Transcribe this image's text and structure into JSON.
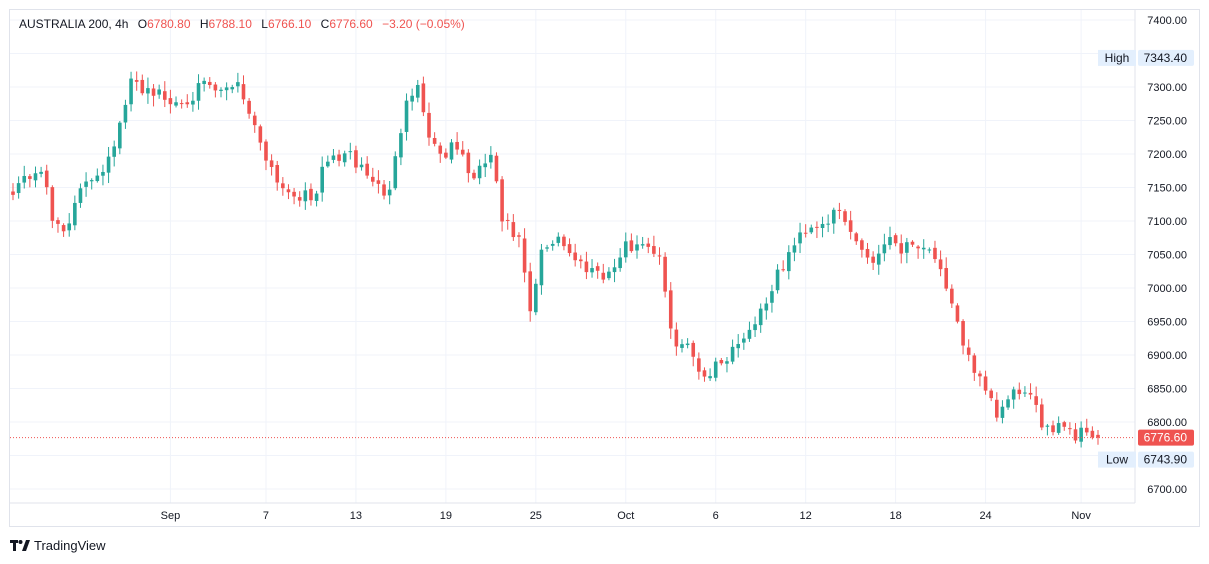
{
  "header": {
    "symbol": "AUSTRALIA 200",
    "interval": "4h",
    "o_label": "O",
    "o_value": "6780.80",
    "h_label": "H",
    "h_value": "6788.10",
    "l_label": "L",
    "l_value": "6766.10",
    "c_label": "C",
    "c_value": "6776.60",
    "change": "−3.20 (−0.05%)"
  },
  "footer": {
    "brand": "TradingView",
    "logo_icon": "tradingview-logo-icon"
  },
  "colors": {
    "up": "#26a69a",
    "down": "#ef5350",
    "grid": "#f0f3fa",
    "badge_gray": "#e3effd"
  },
  "chart_data": {
    "type": "candlestick",
    "ylim": [
      6680,
      7420
    ],
    "y_ticks": [
      7400,
      7350,
      7300,
      7250,
      7200,
      7150,
      7100,
      7050,
      7000,
      6950,
      6900,
      6850,
      6800,
      6750,
      6700
    ],
    "y_tick_labels": [
      "7400.00",
      "7350.00",
      "7300.00",
      "7250.00",
      "7200.00",
      "7150.00",
      "7100.00",
      "7050.00",
      "7000.00",
      "6950.00",
      "6900.00",
      "6850.00",
      "6800.00",
      "6750.00",
      "6700.00"
    ],
    "x_tick_labels": [
      "Sep",
      "7",
      "13",
      "19",
      "25",
      "Oct",
      "6",
      "12",
      "18",
      "24",
      "Nov"
    ],
    "x_tick_bar_index": [
      28,
      45,
      61,
      77,
      93,
      109,
      125,
      141,
      157,
      173,
      190
    ],
    "high_label": "High",
    "high_value": "7343.40",
    "low_label": "Low",
    "low_value": "6743.90",
    "last_value": "6776.60",
    "close_waypoints": [
      [
        0,
        7150
      ],
      [
        5,
        7180
      ],
      [
        7,
        7100
      ],
      [
        9,
        7090
      ],
      [
        11,
        7120
      ],
      [
        13,
        7160
      ],
      [
        16,
        7180
      ],
      [
        19,
        7240
      ],
      [
        21,
        7305
      ],
      [
        25,
        7295
      ],
      [
        28,
        7275
      ],
      [
        31,
        7285
      ],
      [
        34,
        7300
      ],
      [
        37,
        7290
      ],
      [
        40,
        7310
      ],
      [
        43,
        7240
      ],
      [
        46,
        7180
      ],
      [
        48,
        7150
      ],
      [
        51,
        7140
      ],
      [
        53,
        7130
      ],
      [
        56,
        7190
      ],
      [
        59,
        7200
      ],
      [
        62,
        7180
      ],
      [
        65,
        7150
      ],
      [
        67,
        7140
      ],
      [
        70,
        7290
      ],
      [
        72,
        7300
      ],
      [
        74,
        7230
      ],
      [
        76,
        7200
      ],
      [
        79,
        7210
      ],
      [
        82,
        7160
      ],
      [
        85,
        7200
      ],
      [
        87,
        7100
      ],
      [
        90,
        7070
      ],
      [
        92,
        6960
      ],
      [
        94,
        7050
      ],
      [
        97,
        7080
      ],
      [
        100,
        7040
      ],
      [
        103,
        7030
      ],
      [
        106,
        7020
      ],
      [
        109,
        7060
      ],
      [
        112,
        7070
      ],
      [
        115,
        7050
      ],
      [
        117,
        6930
      ],
      [
        120,
        6910
      ],
      [
        123,
        6870
      ],
      [
        126,
        6890
      ],
      [
        129,
        6920
      ],
      [
        132,
        6950
      ],
      [
        135,
        7000
      ],
      [
        138,
        7050
      ],
      [
        141,
        7090
      ],
      [
        144,
        7100
      ],
      [
        147,
        7110
      ],
      [
        150,
        7070
      ],
      [
        153,
        7040
      ],
      [
        156,
        7080
      ],
      [
        158,
        7060
      ],
      [
        161,
        7070
      ],
      [
        164,
        7050
      ],
      [
        166,
        6990
      ],
      [
        169,
        6920
      ],
      [
        171,
        6880
      ],
      [
        173,
        6840
      ],
      [
        175,
        6810
      ],
      [
        177,
        6830
      ],
      [
        179,
        6850
      ],
      [
        181,
        6830
      ],
      [
        183,
        6800
      ],
      [
        185,
        6795
      ],
      [
        187,
        6800
      ],
      [
        189,
        6780
      ],
      [
        191,
        6790
      ],
      [
        193,
        6776.6
      ]
    ],
    "bars": 194
  }
}
